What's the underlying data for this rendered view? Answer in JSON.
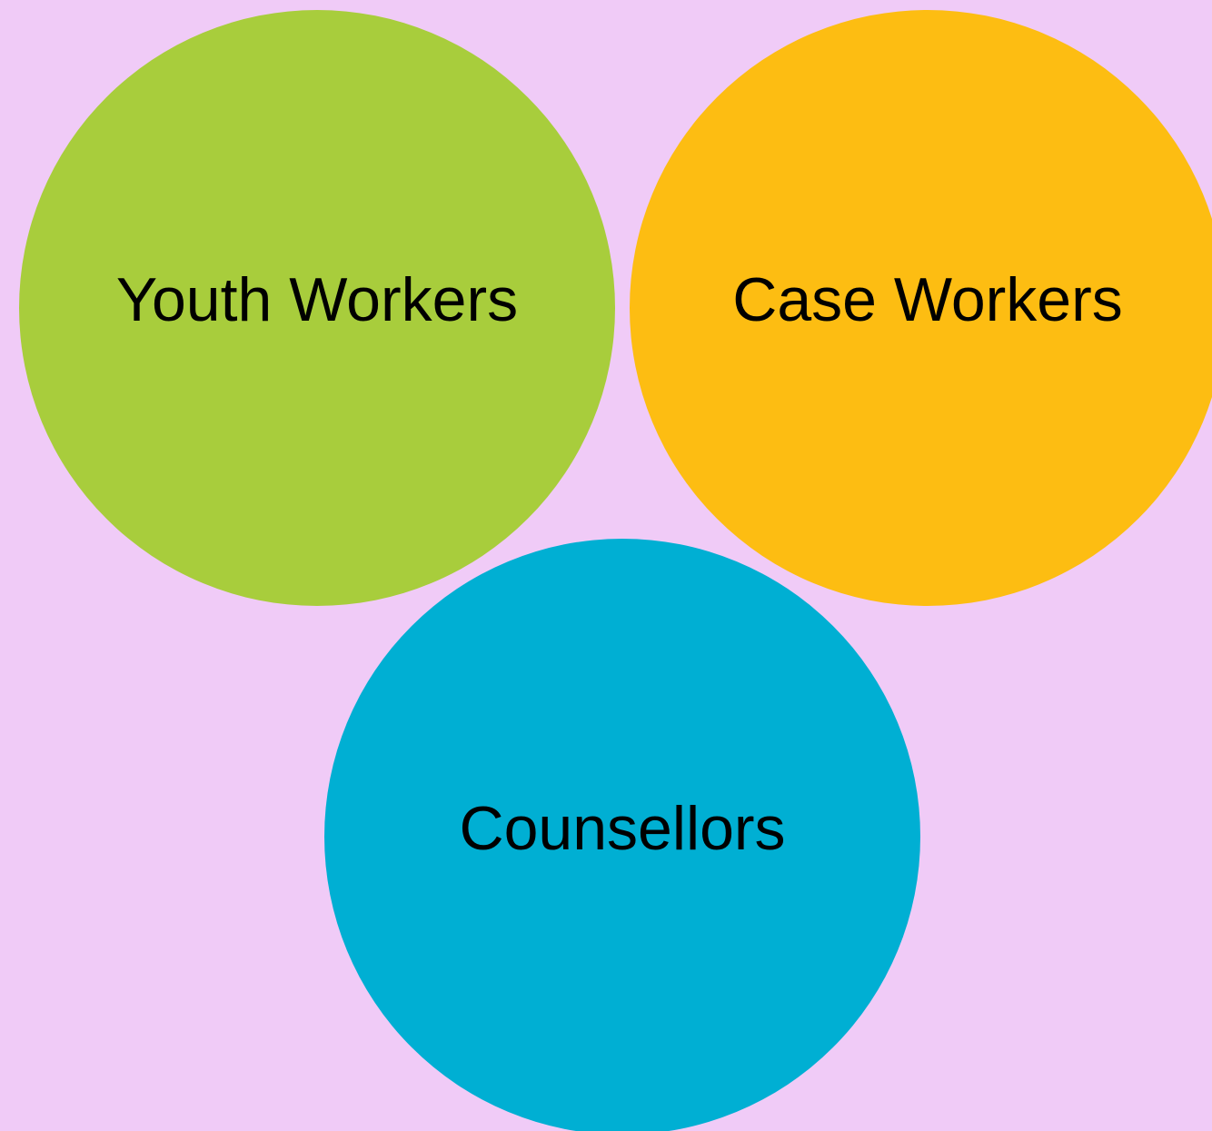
{
  "nodes": [
    {
      "label": "Youth Workers"
    },
    {
      "label": "Case Workers"
    },
    {
      "label": "Counsellors"
    }
  ]
}
